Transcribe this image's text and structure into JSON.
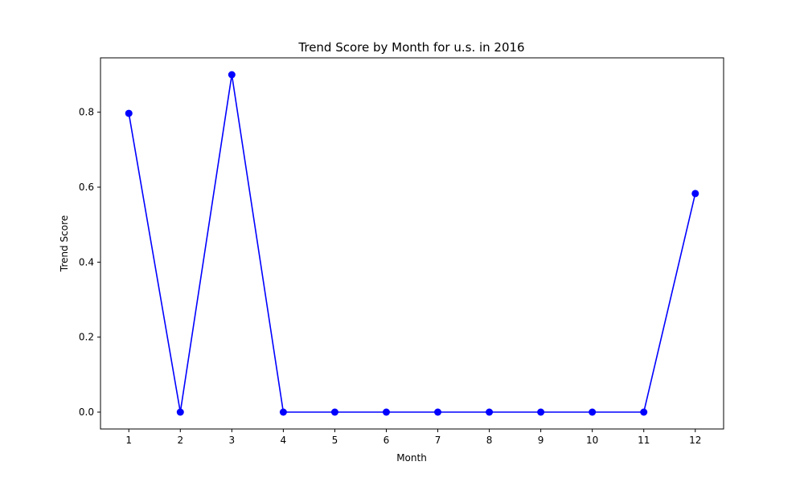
{
  "chart_data": {
    "type": "line",
    "title": "Trend Score by Month for u.s. in 2016",
    "xlabel": "Month",
    "ylabel": "Trend Score",
    "x": [
      1,
      2,
      3,
      4,
      5,
      6,
      7,
      8,
      9,
      10,
      11,
      12
    ],
    "series": [
      {
        "values": [
          0.797,
          0.0,
          0.9,
          0.0,
          0.0,
          0.0,
          0.0,
          0.0,
          0.0,
          0.0,
          0.0,
          0.583
        ],
        "color": "#0000ff",
        "marker": "circle"
      }
    ],
    "x_ticks": [
      "1",
      "2",
      "3",
      "4",
      "5",
      "6",
      "7",
      "8",
      "9",
      "10",
      "11",
      "12"
    ],
    "y_ticks": [
      0.0,
      0.2,
      0.4,
      0.6,
      0.8
    ],
    "y_tick_labels": [
      "0.0",
      "0.2",
      "0.4",
      "0.6",
      "0.8"
    ],
    "xlim": [
      0.45,
      12.55
    ],
    "ylim": [
      -0.045,
      0.945
    ],
    "grid": false,
    "legend": "none"
  }
}
